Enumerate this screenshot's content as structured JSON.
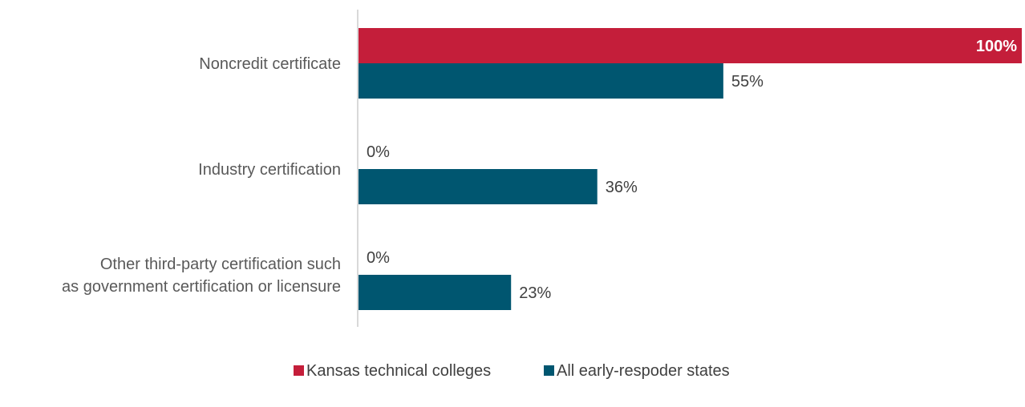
{
  "chart_data": {
    "type": "bar",
    "orientation": "horizontal",
    "categories": [
      [
        "Noncredit certificate"
      ],
      [
        "Industry certification"
      ],
      [
        "Other third-party certification such",
        "as government certification or licensure"
      ]
    ],
    "series": [
      {
        "name": "Kansas technical colleges",
        "color": "#c41e3a",
        "values": [
          100,
          0,
          0
        ],
        "labels": [
          "100%",
          "0%",
          "0%"
        ]
      },
      {
        "name": "All early-respoder states",
        "color": "#005670",
        "values": [
          55,
          36,
          23
        ],
        "labels": [
          "55%",
          "36%",
          "23%"
        ]
      }
    ],
    "xlim": [
      0,
      100
    ],
    "grid": false,
    "legend_position": "bottom-center"
  }
}
